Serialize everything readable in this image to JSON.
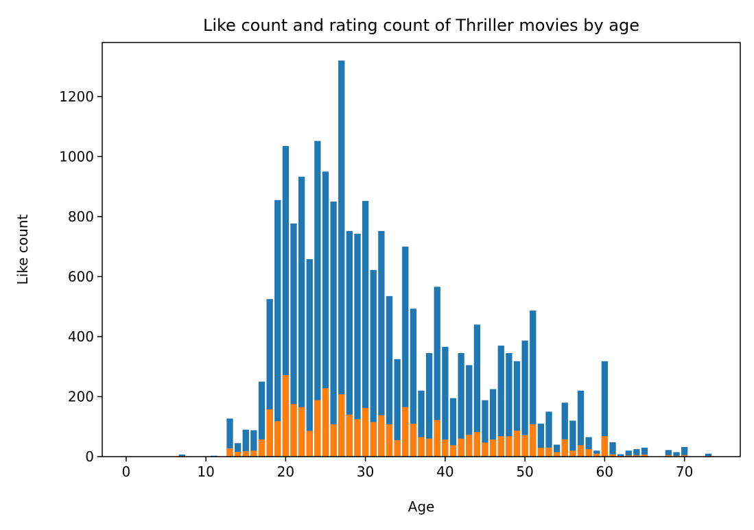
{
  "chart_data": {
    "type": "bar",
    "title": "Like count and rating count of Thriller movies by age",
    "xlabel": "Age",
    "ylabel": "Like count",
    "xlim": [
      -3,
      77
    ],
    "ylim": [
      0,
      1380
    ],
    "xticks": [
      0,
      10,
      20,
      30,
      40,
      50,
      60,
      70
    ],
    "yticks": [
      0,
      200,
      400,
      600,
      800,
      1000,
      1200
    ],
    "grid": false,
    "legend": "none",
    "x": [
      0,
      1,
      2,
      3,
      4,
      5,
      6,
      7,
      8,
      9,
      10,
      11,
      12,
      13,
      14,
      15,
      16,
      17,
      18,
      19,
      20,
      21,
      22,
      23,
      24,
      25,
      26,
      27,
      28,
      29,
      30,
      31,
      32,
      33,
      34,
      35,
      36,
      37,
      38,
      39,
      40,
      41,
      42,
      43,
      44,
      45,
      46,
      47,
      48,
      49,
      50,
      51,
      52,
      53,
      54,
      55,
      56,
      57,
      58,
      59,
      60,
      61,
      62,
      63,
      64,
      65,
      66,
      67,
      68,
      69,
      70,
      71,
      72,
      73,
      74
    ],
    "series": [
      {
        "color": "#1f77b4",
        "values": [
          1,
          0,
          0,
          0,
          0,
          0,
          0,
          7,
          0,
          0,
          0,
          3,
          0,
          127,
          45,
          90,
          88,
          250,
          525,
          855,
          1035,
          777,
          933,
          658,
          1052,
          950,
          850,
          1320,
          752,
          743,
          852,
          622,
          752,
          535,
          325,
          700,
          493,
          220,
          345,
          566,
          366,
          195,
          345,
          305,
          440,
          188,
          225,
          370,
          345,
          318,
          387,
          487,
          110,
          150,
          40,
          180,
          120,
          220,
          65,
          20,
          318,
          48,
          8,
          20,
          25,
          30,
          0,
          0,
          22,
          15,
          32,
          0,
          0,
          10,
          0
        ]
      },
      {
        "color": "#ff7f0e",
        "values": [
          0,
          0,
          0,
          0,
          0,
          0,
          0,
          2,
          0,
          0,
          0,
          1,
          0,
          28,
          16,
          18,
          20,
          58,
          158,
          118,
          272,
          175,
          165,
          86,
          188,
          228,
          108,
          208,
          140,
          125,
          162,
          115,
          138,
          108,
          55,
          165,
          110,
          65,
          60,
          122,
          57,
          38,
          60,
          73,
          82,
          47,
          57,
          68,
          68,
          87,
          72,
          108,
          30,
          30,
          15,
          58,
          20,
          38,
          25,
          10,
          68,
          8,
          2,
          4,
          5,
          7,
          0,
          0,
          5,
          3,
          5,
          0,
          0,
          2,
          0
        ]
      }
    ]
  }
}
